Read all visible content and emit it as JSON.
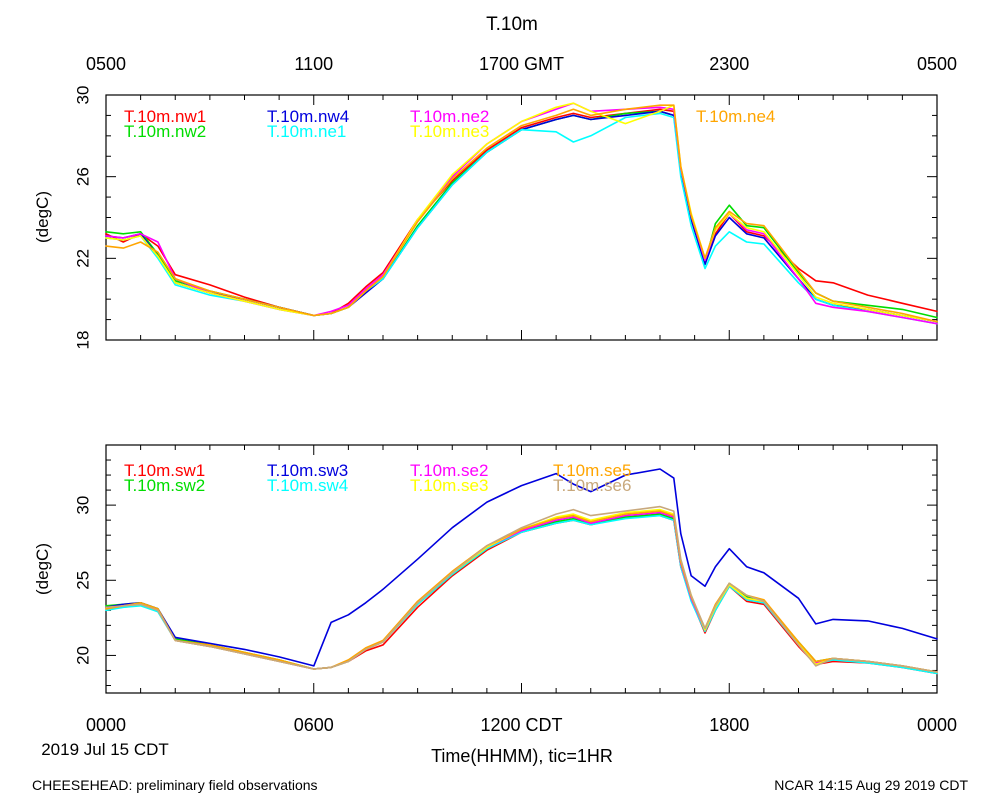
{
  "page": {
    "title": "T.10m",
    "date_label": "2019 Jul 15 CDT",
    "x_axis_label": "Time(HHMM), tic=1HR",
    "footer_left": "CHEESEHEAD: preliminary field observations",
    "footer_right": "NCAR 14:15 Aug 29 2019 CDT",
    "top_ticks": [
      {
        "hour": 0,
        "label": "0500"
      },
      {
        "hour": 6,
        "label": "1100"
      },
      {
        "hour": 12,
        "label": "1700 GMT"
      },
      {
        "hour": 18,
        "label": "2300"
      },
      {
        "hour": 24,
        "label": "0500"
      }
    ],
    "bottom_ticks": [
      {
        "hour": 0,
        "label": "0000"
      },
      {
        "hour": 6,
        "label": "0600"
      },
      {
        "hour": 12,
        "label": "1200 CDT"
      },
      {
        "hour": 18,
        "label": "1800"
      },
      {
        "hour": 24,
        "label": "0000"
      }
    ]
  },
  "chart_data": [
    {
      "type": "line",
      "title": "T.10m",
      "xlabel": "Time(HHMM), tic=1HR",
      "ylabel": "(degC)",
      "xlim": [
        0,
        24
      ],
      "ylim": [
        18,
        30
      ],
      "yticks": [
        18,
        22,
        26,
        30
      ],
      "x": [
        0,
        0.5,
        1,
        1.5,
        2,
        3,
        4,
        5,
        6,
        6.5,
        7,
        7.5,
        8,
        9,
        10,
        11,
        12,
        13,
        13.5,
        14,
        15,
        16,
        16.4,
        16.6,
        16.9,
        17.3,
        17.6,
        18,
        18.5,
        19,
        20,
        20.5,
        21,
        22,
        23,
        24
      ],
      "series": [
        {
          "name": "T.10m.nw1",
          "color": "#ff0000",
          "values": [
            23.2,
            22.8,
            23.2,
            22.6,
            21.2,
            20.7,
            20.1,
            19.6,
            19.2,
            19.3,
            19.8,
            20.6,
            21.3,
            23.9,
            25.8,
            27.3,
            28.4,
            28.9,
            29.1,
            28.9,
            29.1,
            29.3,
            29.2,
            26.3,
            24.1,
            22.0,
            23.2,
            24.2,
            23.3,
            23.1,
            21.5,
            20.9,
            20.8,
            20.2,
            19.8,
            19.4
          ]
        },
        {
          "name": "T.10m.nw2",
          "color": "#00dd00",
          "values": [
            23.3,
            23.2,
            23.3,
            22.2,
            20.9,
            20.4,
            20.0,
            19.6,
            19.2,
            19.3,
            19.6,
            20.4,
            21.0,
            23.6,
            25.7,
            27.2,
            28.3,
            28.8,
            29.0,
            28.8,
            29.1,
            29.2,
            29.0,
            26.3,
            24.0,
            21.8,
            23.7,
            24.6,
            23.6,
            23.5,
            21.3,
            20.3,
            19.9,
            19.7,
            19.5,
            19.1
          ]
        },
        {
          "name": "T.10m.nw4",
          "color": "#0000dd",
          "values": [
            23.1,
            23.0,
            23.2,
            22.1,
            20.8,
            20.3,
            20.0,
            19.6,
            19.2,
            19.3,
            19.6,
            20.3,
            21.0,
            23.5,
            25.6,
            27.2,
            28.3,
            28.8,
            29.0,
            28.8,
            29.0,
            29.2,
            29.0,
            26.2,
            23.9,
            21.7,
            23.1,
            24.0,
            23.2,
            23.0,
            21.0,
            20.0,
            19.7,
            19.5,
            19.2,
            18.9
          ]
        },
        {
          "name": "T.10m.ne1",
          "color": "#00ffff",
          "values": [
            23.0,
            22.9,
            23.1,
            22.0,
            20.7,
            20.2,
            19.9,
            19.5,
            19.2,
            19.3,
            19.6,
            20.4,
            21.0,
            23.5,
            25.6,
            27.2,
            28.3,
            28.2,
            27.7,
            28.0,
            28.9,
            29.1,
            28.9,
            26.0,
            23.6,
            21.5,
            22.6,
            23.3,
            22.8,
            22.7,
            20.8,
            20.0,
            19.7,
            19.4,
            19.1,
            18.8
          ]
        },
        {
          "name": "T.10m.ne2",
          "color": "#ff00ff",
          "values": [
            23.1,
            23.0,
            23.2,
            22.8,
            21.0,
            20.3,
            19.9,
            19.5,
            19.2,
            19.4,
            19.7,
            20.5,
            21.2,
            23.8,
            26.0,
            27.6,
            28.7,
            29.3,
            29.6,
            29.2,
            29.3,
            29.4,
            29.3,
            26.4,
            24.1,
            21.9,
            23.4,
            24.2,
            23.4,
            23.2,
            21.0,
            19.8,
            19.6,
            19.4,
            19.1,
            18.8
          ]
        },
        {
          "name": "T.10m.ne3",
          "color": "#ffff00",
          "values": [
            23.0,
            22.9,
            23.1,
            22.1,
            20.8,
            20.3,
            19.9,
            19.5,
            19.2,
            19.3,
            19.6,
            20.4,
            21.1,
            23.9,
            26.1,
            27.6,
            28.7,
            29.4,
            29.6,
            29.2,
            28.6,
            29.2,
            29.5,
            26.5,
            24.2,
            22.0,
            23.4,
            24.2,
            23.5,
            23.3,
            21.2,
            20.1,
            19.8,
            19.5,
            19.2,
            18.9
          ]
        },
        {
          "name": "T.10m.ne4",
          "color": "#ffa500",
          "values": [
            22.6,
            22.5,
            22.8,
            22.3,
            21.0,
            20.4,
            20.0,
            19.6,
            19.2,
            19.3,
            19.6,
            20.4,
            21.1,
            23.8,
            25.9,
            27.4,
            28.5,
            29.0,
            29.3,
            29.0,
            29.3,
            29.5,
            29.5,
            26.5,
            24.1,
            22.0,
            23.5,
            24.3,
            23.7,
            23.6,
            21.4,
            20.3,
            19.9,
            19.6,
            19.3,
            18.9
          ]
        }
      ]
    },
    {
      "type": "line",
      "xlabel": "Time(HHMM), tic=1HR",
      "ylabel": "(degC)",
      "xlim": [
        0,
        24
      ],
      "ylim": [
        17.5,
        34
      ],
      "yticks": [
        20,
        25,
        30
      ],
      "x": [
        0,
        0.5,
        1,
        1.5,
        2,
        3,
        4,
        5,
        6,
        6.5,
        7,
        7.5,
        8,
        9,
        10,
        11,
        12,
        13,
        13.5,
        14,
        15,
        16,
        16.4,
        16.6,
        16.9,
        17.3,
        17.6,
        18,
        18.5,
        19,
        20,
        20.5,
        21,
        22,
        23,
        24
      ],
      "series": [
        {
          "name": "T.10m.sw1",
          "color": "#ff0000",
          "values": [
            23.2,
            23.3,
            23.4,
            23.0,
            21.0,
            20.6,
            20.1,
            19.6,
            19.1,
            19.2,
            19.6,
            20.3,
            20.7,
            23.2,
            25.3,
            27.0,
            28.2,
            28.8,
            29.0,
            28.7,
            29.2,
            29.3,
            29.0,
            25.9,
            23.7,
            21.5,
            23.0,
            24.6,
            23.6,
            23.4,
            20.6,
            19.4,
            19.6,
            19.5,
            19.2,
            18.8
          ]
        },
        {
          "name": "T.10m.sw2",
          "color": "#00dd00",
          "values": [
            23.3,
            23.4,
            23.5,
            23.1,
            21.1,
            20.7,
            20.2,
            19.7,
            19.1,
            19.2,
            19.6,
            20.4,
            20.9,
            23.4,
            25.4,
            27.1,
            28.3,
            28.9,
            29.1,
            28.8,
            29.2,
            29.4,
            29.1,
            26.0,
            23.8,
            21.8,
            23.3,
            24.8,
            23.9,
            23.6,
            20.9,
            19.6,
            19.8,
            19.6,
            19.3,
            18.9
          ]
        },
        {
          "name": "T.10m.sw3",
          "color": "#0000dd",
          "values": [
            23.2,
            23.4,
            23.5,
            23.1,
            21.2,
            20.8,
            20.4,
            19.9,
            19.3,
            22.2,
            22.7,
            23.5,
            24.4,
            26.4,
            28.5,
            30.2,
            31.3,
            32.1,
            31.4,
            30.9,
            32.0,
            32.4,
            31.8,
            28.1,
            25.3,
            24.6,
            25.9,
            27.1,
            25.9,
            25.5,
            23.8,
            22.1,
            22.4,
            22.3,
            21.8,
            21.1
          ]
        },
        {
          "name": "T.10m.sw4",
          "color": "#00ffff",
          "values": [
            23.0,
            23.2,
            23.3,
            22.9,
            21.0,
            20.6,
            20.1,
            19.6,
            19.1,
            19.2,
            19.6,
            20.4,
            20.9,
            23.4,
            25.4,
            27.1,
            28.2,
            28.8,
            29.0,
            28.7,
            29.1,
            29.3,
            29.0,
            25.9,
            23.6,
            21.6,
            23.0,
            24.6,
            23.7,
            23.5,
            20.7,
            19.4,
            19.7,
            19.5,
            19.2,
            18.8
          ]
        },
        {
          "name": "T.10m.se2",
          "color": "#ff00ff",
          "values": [
            23.1,
            23.3,
            23.4,
            23.0,
            21.0,
            20.6,
            20.1,
            19.6,
            19.1,
            19.2,
            19.6,
            20.4,
            20.9,
            23.5,
            25.5,
            27.2,
            28.3,
            29.0,
            29.2,
            28.8,
            29.3,
            29.5,
            29.2,
            26.1,
            23.8,
            21.7,
            23.2,
            24.7,
            23.8,
            23.6,
            20.8,
            19.5,
            19.8,
            19.6,
            19.3,
            18.9
          ]
        },
        {
          "name": "T.10m.se3",
          "color": "#ffff00",
          "values": [
            23.1,
            23.3,
            23.4,
            23.0,
            21.0,
            20.6,
            20.1,
            19.6,
            19.1,
            19.2,
            19.6,
            20.4,
            20.9,
            23.5,
            25.5,
            27.2,
            28.4,
            29.2,
            29.4,
            29.0,
            29.5,
            29.7,
            29.4,
            26.3,
            24.0,
            21.7,
            23.2,
            24.7,
            23.8,
            23.6,
            20.8,
            19.4,
            19.8,
            19.6,
            19.3,
            18.9
          ]
        },
        {
          "name": "T.10m.se5",
          "color": "#ffa500",
          "values": [
            23.1,
            23.3,
            23.5,
            23.1,
            21.0,
            20.7,
            20.2,
            19.7,
            19.1,
            19.2,
            19.7,
            20.5,
            21.0,
            23.6,
            25.6,
            27.3,
            28.4,
            29.1,
            29.3,
            28.9,
            29.4,
            29.6,
            29.3,
            26.2,
            23.9,
            21.8,
            23.4,
            24.8,
            24.0,
            23.7,
            20.9,
            19.6,
            19.8,
            19.6,
            19.3,
            18.9
          ]
        },
        {
          "name": "T.10m.se6",
          "color": "#c8a87c",
          "values": [
            23.2,
            23.3,
            23.4,
            23.0,
            21.0,
            20.6,
            20.1,
            19.6,
            19.1,
            19.2,
            19.6,
            20.4,
            20.9,
            23.5,
            25.5,
            27.3,
            28.5,
            29.4,
            29.7,
            29.3,
            29.6,
            29.9,
            29.6,
            26.4,
            24.0,
            21.8,
            23.3,
            24.8,
            24.0,
            23.6,
            20.7,
            19.3,
            19.8,
            19.6,
            19.3,
            18.9
          ]
        }
      ]
    }
  ]
}
